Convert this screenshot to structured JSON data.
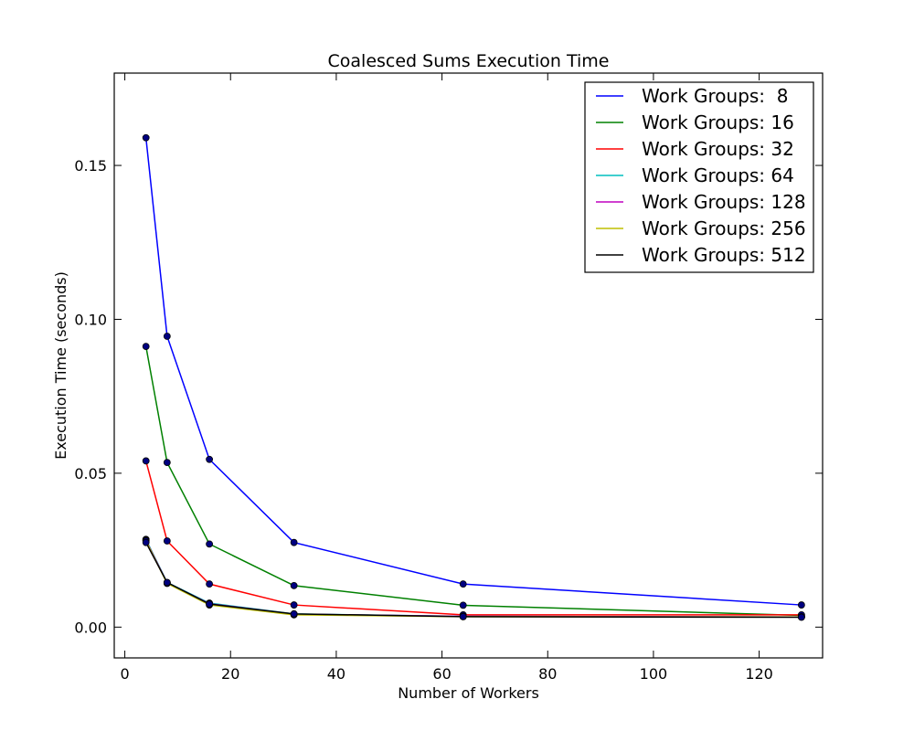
{
  "chart_data": {
    "type": "line",
    "title": "Coalesced Sums Execution Time",
    "xlabel": "Number of Workers",
    "ylabel": "Execution Time (seconds)",
    "xlim": [
      -2,
      132
    ],
    "ylim": [
      -0.01,
      0.18
    ],
    "xticks": [
      0,
      20,
      40,
      60,
      80,
      100,
      120
    ],
    "xtick_labels": [
      "0",
      "20",
      "40",
      "60",
      "80",
      "100",
      "120"
    ],
    "yticks": [
      0.0,
      0.05,
      0.1,
      0.15
    ],
    "ytick_labels": [
      "0.00",
      "0.05",
      "0.10",
      "0.15"
    ],
    "legend_position": "top-right",
    "x": [
      4,
      8,
      16,
      32,
      64,
      128
    ],
    "marker_color": "#000080",
    "series": [
      {
        "name": "Work Groups:  8",
        "color": "#0000ff",
        "values": [
          0.159,
          0.0945,
          0.0545,
          0.0275,
          0.014,
          0.0072
        ]
      },
      {
        "name": "Work Groups: 16",
        "color": "#008000",
        "values": [
          0.0912,
          0.0535,
          0.027,
          0.0135,
          0.0071,
          0.0038
        ]
      },
      {
        "name": "Work Groups: 32",
        "color": "#ff0000",
        "values": [
          0.054,
          0.028,
          0.014,
          0.0072,
          0.004,
          0.004
        ]
      },
      {
        "name": "Work Groups: 64",
        "color": "#00bfbf",
        "values": [
          0.0285,
          0.0145,
          0.0078,
          0.0043,
          0.0035,
          0.0033
        ]
      },
      {
        "name": "Work Groups: 128",
        "color": "#bf00bf",
        "values": [
          0.0282,
          0.0144,
          0.0076,
          0.0042,
          0.0035,
          0.0033
        ]
      },
      {
        "name": "Work Groups: 256",
        "color": "#bfbf00",
        "values": [
          0.028,
          0.0142,
          0.0072,
          0.004,
          0.0034,
          0.0033
        ]
      },
      {
        "name": "Work Groups: 512",
        "color": "#000000",
        "values": [
          0.0275,
          0.0145,
          0.0075,
          0.0043,
          0.0034,
          0.0032
        ]
      }
    ]
  }
}
